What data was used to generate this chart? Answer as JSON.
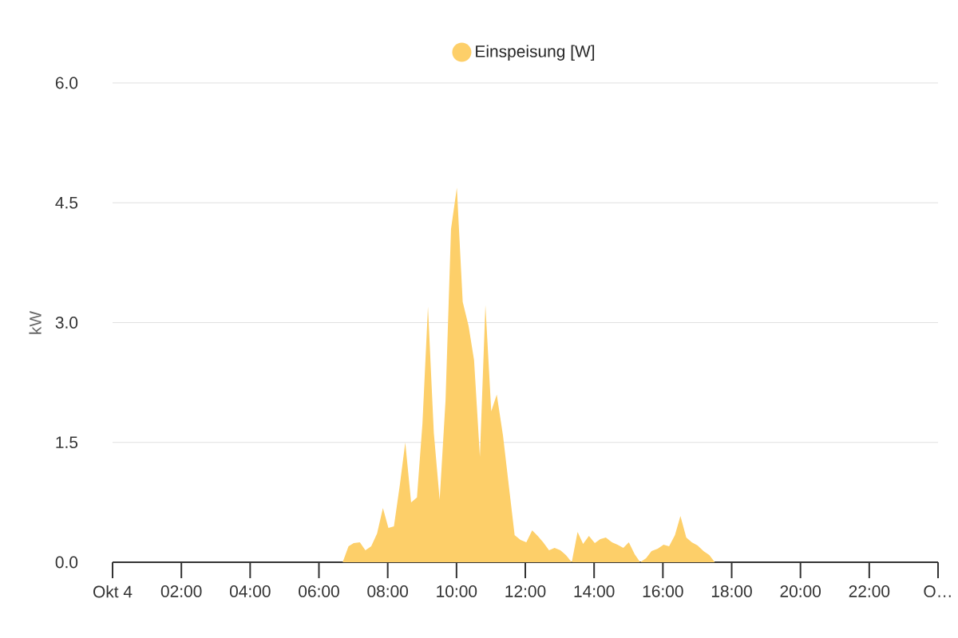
{
  "chart_data": {
    "type": "area",
    "ylabel": "kW",
    "legend": "top",
    "grid": "y",
    "marker": "none",
    "xlim": [
      0,
      24
    ],
    "ylim": [
      0,
      6
    ],
    "xticks": [
      {
        "value": 0,
        "label": "Okt 4"
      },
      {
        "value": 2,
        "label": "02:00"
      },
      {
        "value": 4,
        "label": "04:00"
      },
      {
        "value": 6,
        "label": "06:00"
      },
      {
        "value": 8,
        "label": "08:00"
      },
      {
        "value": 10,
        "label": "10:00"
      },
      {
        "value": 12,
        "label": "12:00"
      },
      {
        "value": 14,
        "label": "14:00"
      },
      {
        "value": 16,
        "label": "16:00"
      },
      {
        "value": 18,
        "label": "18:00"
      },
      {
        "value": 20,
        "label": "20:00"
      },
      {
        "value": 22,
        "label": "22:00"
      },
      {
        "value": 24,
        "label": "O…"
      }
    ],
    "yticks": [
      {
        "value": 0,
        "label": "0.0"
      },
      1.5,
      {
        "value": 3,
        "label": "3.0"
      },
      4.5,
      {
        "value": 6,
        "label": "6.0"
      }
    ],
    "series": [
      {
        "name": "Einspeisung [W]",
        "color": "#fdcf69",
        "x": [
          0,
          6.69,
          6.86,
          7.01,
          7.19,
          7.35,
          7.52,
          7.69,
          7.86,
          8.02,
          8.18,
          8.35,
          8.51,
          8.68,
          8.85,
          9.01,
          9.17,
          9.34,
          9.51,
          9.68,
          9.84,
          10.01,
          10.18,
          10.35,
          10.51,
          10.68,
          10.84,
          11.01,
          11.17,
          11.35,
          11.52,
          11.69,
          11.86,
          12.03,
          12.2,
          12.36,
          12.52,
          12.69,
          12.85,
          13.02,
          13.18,
          13.35,
          13.52,
          13.68,
          13.85,
          14.02,
          14.18,
          14.34,
          14.52,
          14.68,
          14.85,
          15.01,
          15.18,
          15.34,
          15.51,
          15.67,
          15.85,
          16.02,
          16.18,
          16.35,
          16.51,
          16.68,
          16.84,
          17.01,
          17.18,
          17.35,
          17.51,
          24
        ],
        "values": [
          0,
          0,
          0.2,
          0.24,
          0.25,
          0.15,
          0.2,
          0.36,
          0.68,
          0.43,
          0.45,
          0.96,
          1.5,
          0.75,
          0.81,
          1.74,
          3.2,
          1.62,
          0.78,
          2.02,
          4.17,
          4.69,
          3.26,
          2.96,
          2.53,
          1.32,
          3.22,
          1.89,
          2.1,
          1.59,
          0.96,
          0.34,
          0.28,
          0.25,
          0.4,
          0.33,
          0.25,
          0.15,
          0.18,
          0.15,
          0.09,
          0,
          0.38,
          0.23,
          0.33,
          0.24,
          0.29,
          0.31,
          0.25,
          0.22,
          0.18,
          0.25,
          0.1,
          0,
          0.05,
          0.14,
          0.17,
          0.22,
          0.2,
          0.34,
          0.58,
          0.31,
          0.25,
          0.21,
          0.14,
          0.09,
          0,
          0
        ]
      }
    ]
  }
}
